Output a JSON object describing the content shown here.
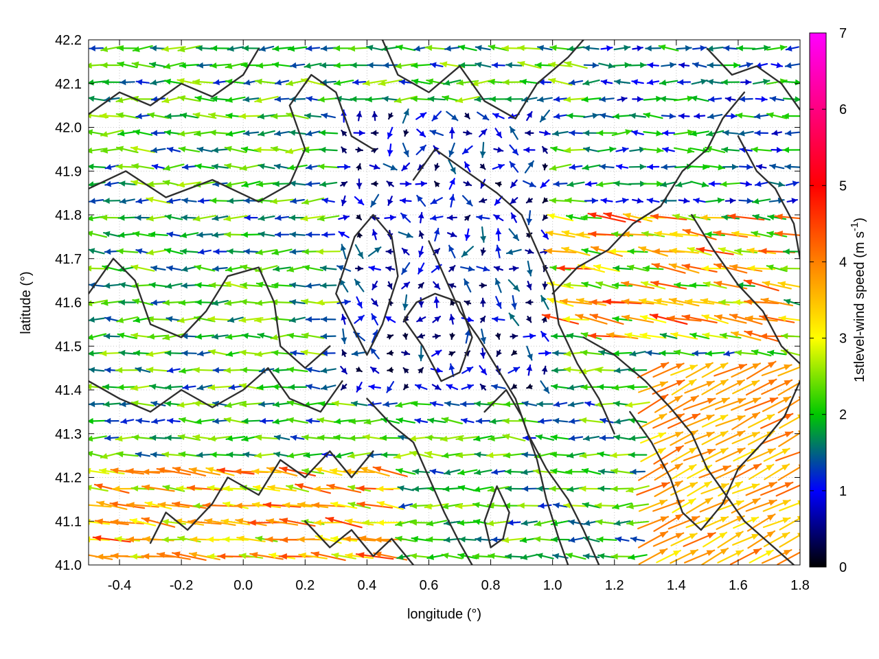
{
  "chart_data": {
    "type": "vector-field",
    "xlabel": "longitude (°)",
    "ylabel": "latitude (°)",
    "xlim": [
      -0.5,
      1.8
    ],
    "ylim": [
      41.0,
      42.2
    ],
    "xticks": [
      "-0.4",
      "-0.2",
      "0.0",
      "0.2",
      "0.4",
      "0.6",
      "0.8",
      "1.0",
      "1.2",
      "1.4",
      "1.6",
      "1.8"
    ],
    "xtick_values": [
      -0.4,
      -0.2,
      0.0,
      0.2,
      0.4,
      0.6,
      0.8,
      1.0,
      1.2,
      1.4,
      1.6,
      1.8
    ],
    "yticks": [
      "41.0",
      "41.1",
      "41.2",
      "41.3",
      "41.4",
      "41.5",
      "41.6",
      "41.7",
      "41.8",
      "41.9",
      "42.0",
      "42.1",
      "42.2"
    ],
    "ytick_values": [
      41.0,
      41.1,
      41.2,
      41.3,
      41.4,
      41.5,
      41.6,
      41.7,
      41.8,
      41.9,
      42.0,
      42.1,
      42.2
    ],
    "grid": true,
    "colorbar": {
      "label": "1stlevel-wind speed (m s",
      "label_sup": "-1",
      "label_end": ")",
      "range": [
        0,
        7
      ],
      "ticks": [
        "0",
        "1",
        "2",
        "3",
        "4",
        "5",
        "6",
        "7"
      ],
      "tick_values": [
        0,
        1,
        2,
        3,
        4,
        5,
        6,
        7
      ],
      "colors": [
        "#000000",
        "#0000ff",
        "#00c800",
        "#ffff00",
        "#ff8000",
        "#ff0000",
        "#ff00ff"
      ]
    },
    "contour_color": "#2e2e2e",
    "contours": [
      [
        [
          -0.5,
          42.03
        ],
        [
          -0.4,
          42.08
        ],
        [
          -0.3,
          42.05
        ],
        [
          -0.2,
          42.1
        ],
        [
          -0.1,
          42.07
        ],
        [
          0.0,
          42.12
        ],
        [
          0.05,
          42.18
        ]
      ],
      [
        [
          -0.5,
          41.86
        ],
        [
          -0.38,
          41.9
        ],
        [
          -0.25,
          41.84
        ],
        [
          -0.1,
          41.88
        ],
        [
          0.05,
          41.83
        ],
        [
          0.15,
          41.87
        ],
        [
          0.2,
          41.95
        ],
        [
          0.15,
          42.05
        ],
        [
          0.22,
          42.12
        ],
        [
          0.3,
          42.08
        ],
        [
          0.35,
          41.98
        ],
        [
          0.42,
          41.95
        ]
      ],
      [
        [
          -0.5,
          41.62
        ],
        [
          -0.42,
          41.7
        ],
        [
          -0.35,
          41.65
        ],
        [
          -0.3,
          41.55
        ],
        [
          -0.2,
          41.52
        ],
        [
          -0.12,
          41.58
        ],
        [
          -0.05,
          41.66
        ],
        [
          0.05,
          41.68
        ],
        [
          0.1,
          41.6
        ],
        [
          0.12,
          41.5
        ],
        [
          0.2,
          41.45
        ],
        [
          0.28,
          41.5
        ]
      ],
      [
        [
          -0.5,
          41.42
        ],
        [
          -0.4,
          41.38
        ],
        [
          -0.3,
          41.35
        ],
        [
          -0.2,
          41.4
        ],
        [
          -0.1,
          41.36
        ],
        [
          0.0,
          41.4
        ],
        [
          0.08,
          41.45
        ],
        [
          0.15,
          41.38
        ],
        [
          0.25,
          41.35
        ],
        [
          0.32,
          41.42
        ]
      ],
      [
        [
          -0.3,
          41.05
        ],
        [
          -0.25,
          41.12
        ],
        [
          -0.18,
          41.08
        ],
        [
          -0.1,
          41.14
        ],
        [
          -0.05,
          41.2
        ],
        [
          0.05,
          41.16
        ],
        [
          0.12,
          41.24
        ],
        [
          0.2,
          41.2
        ],
        [
          0.28,
          41.26
        ],
        [
          0.35,
          41.2
        ],
        [
          0.42,
          41.26
        ]
      ],
      [
        [
          0.3,
          41.62
        ],
        [
          0.35,
          41.55
        ],
        [
          0.4,
          41.48
        ],
        [
          0.45,
          41.55
        ],
        [
          0.5,
          41.66
        ],
        [
          0.48,
          41.75
        ],
        [
          0.42,
          41.8
        ],
        [
          0.36,
          41.75
        ],
        [
          0.3,
          41.62
        ]
      ],
      [
        [
          0.4,
          41.38
        ],
        [
          0.48,
          41.32
        ],
        [
          0.55,
          41.28
        ],
        [
          0.6,
          41.2
        ],
        [
          0.65,
          41.12
        ],
        [
          0.7,
          41.05
        ],
        [
          0.74,
          41.0
        ]
      ],
      [
        [
          0.45,
          42.2
        ],
        [
          0.5,
          42.12
        ],
        [
          0.6,
          42.08
        ],
        [
          0.7,
          42.14
        ],
        [
          0.78,
          42.06
        ],
        [
          0.88,
          42.02
        ],
        [
          0.95,
          42.1
        ],
        [
          1.05,
          42.16
        ],
        [
          1.1,
          42.2
        ]
      ],
      [
        [
          0.55,
          41.88
        ],
        [
          0.62,
          41.95
        ],
        [
          0.72,
          41.9
        ],
        [
          0.82,
          41.85
        ],
        [
          0.9,
          41.8
        ],
        [
          0.95,
          41.72
        ],
        [
          1.0,
          41.64
        ],
        [
          1.02,
          41.55
        ],
        [
          1.08,
          41.46
        ],
        [
          1.15,
          41.38
        ],
        [
          1.2,
          41.3
        ]
      ],
      [
        [
          0.6,
          41.74
        ],
        [
          0.65,
          41.66
        ],
        [
          0.7,
          41.58
        ],
        [
          0.76,
          41.52
        ],
        [
          0.82,
          41.45
        ],
        [
          0.88,
          41.38
        ],
        [
          0.92,
          41.3
        ],
        [
          0.98,
          41.22
        ],
        [
          1.05,
          41.15
        ],
        [
          1.1,
          41.08
        ],
        [
          1.15,
          41.0
        ]
      ],
      [
        [
          0.78,
          41.35
        ],
        [
          0.85,
          41.4
        ],
        [
          0.9,
          41.34
        ],
        [
          0.95,
          41.24
        ],
        [
          0.98,
          41.15
        ],
        [
          1.02,
          41.06
        ],
        [
          1.05,
          41.0
        ]
      ],
      [
        [
          0.82,
          41.18
        ],
        [
          0.86,
          41.12
        ],
        [
          0.84,
          41.06
        ],
        [
          0.8,
          41.04
        ],
        [
          0.78,
          41.1
        ],
        [
          0.82,
          41.18
        ]
      ],
      [
        [
          1.0,
          41.62
        ],
        [
          1.08,
          41.68
        ],
        [
          1.18,
          41.72
        ],
        [
          1.26,
          41.78
        ],
        [
          1.35,
          41.82
        ],
        [
          1.42,
          41.9
        ],
        [
          1.5,
          41.95
        ],
        [
          1.55,
          42.02
        ],
        [
          1.62,
          42.08
        ]
      ],
      [
        [
          1.1,
          41.52
        ],
        [
          1.2,
          41.48
        ],
        [
          1.3,
          41.42
        ],
        [
          1.38,
          41.36
        ],
        [
          1.45,
          41.3
        ],
        [
          1.5,
          41.22
        ],
        [
          1.56,
          41.16
        ],
        [
          1.62,
          41.1
        ],
        [
          1.7,
          41.05
        ],
        [
          1.78,
          41.0
        ]
      ],
      [
        [
          1.25,
          41.35
        ],
        [
          1.32,
          41.28
        ],
        [
          1.38,
          41.2
        ],
        [
          1.42,
          41.12
        ],
        [
          1.48,
          41.08
        ],
        [
          1.55,
          41.14
        ],
        [
          1.6,
          41.22
        ],
        [
          1.68,
          41.28
        ],
        [
          1.75,
          41.34
        ],
        [
          1.8,
          41.42
        ]
      ],
      [
        [
          1.45,
          41.8
        ],
        [
          1.52,
          41.72
        ],
        [
          1.6,
          41.64
        ],
        [
          1.68,
          41.58
        ],
        [
          1.74,
          41.5
        ],
        [
          1.8,
          41.46
        ]
      ],
      [
        [
          1.6,
          41.98
        ],
        [
          1.66,
          41.9
        ],
        [
          1.72,
          41.86
        ],
        [
          1.78,
          41.78
        ],
        [
          1.8,
          41.7
        ]
      ],
      [
        [
          1.5,
          42.18
        ],
        [
          1.58,
          42.12
        ],
        [
          1.66,
          42.14
        ],
        [
          1.74,
          42.1
        ],
        [
          1.8,
          42.04
        ]
      ],
      [
        [
          0.2,
          41.1
        ],
        [
          0.28,
          41.04
        ],
        [
          0.35,
          41.08
        ],
        [
          0.42,
          41.02
        ],
        [
          0.48,
          41.06
        ],
        [
          0.55,
          41.0
        ]
      ],
      [
        [
          0.52,
          41.56
        ],
        [
          0.58,
          41.5
        ],
        [
          0.64,
          41.42
        ],
        [
          0.7,
          41.44
        ],
        [
          0.74,
          41.52
        ],
        [
          0.7,
          41.6
        ],
        [
          0.62,
          41.62
        ],
        [
          0.56,
          41.6
        ],
        [
          0.52,
          41.56
        ]
      ]
    ]
  }
}
